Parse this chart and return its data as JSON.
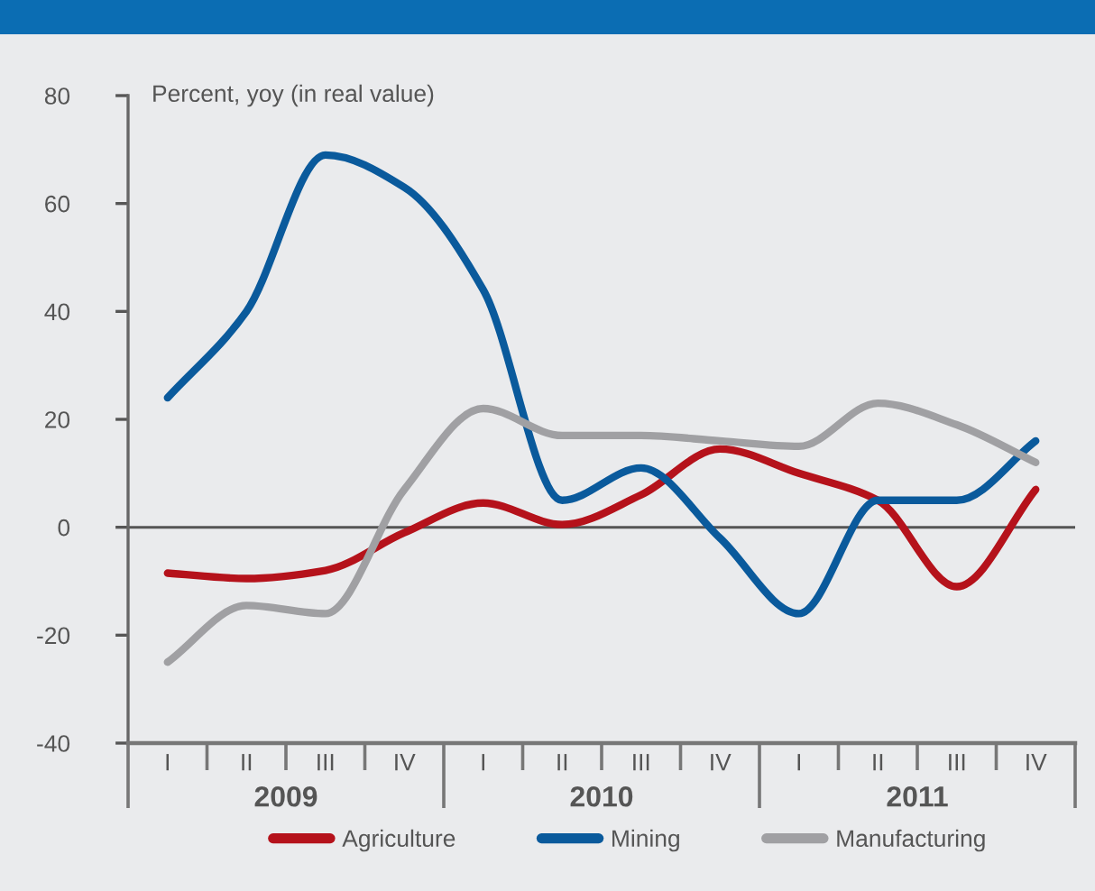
{
  "chart_data": {
    "type": "line",
    "ylabel": "Percent, yoy (in real value)",
    "categories": [
      "I",
      "II",
      "III",
      "IV",
      "I",
      "II",
      "III",
      "IV",
      "I",
      "II",
      "III",
      "IV"
    ],
    "annotations": [
      "2009",
      "2010",
      "2011"
    ],
    "series": [
      {
        "name": "Agriculture",
        "color": "#b5121b",
        "values": [
          -8.5,
          -9.5,
          -8,
          -1,
          4.5,
          0.5,
          6,
          14.5,
          10,
          5,
          -11,
          7
        ]
      },
      {
        "name": "Mining",
        "color": "#0a5a9c",
        "values": [
          24,
          40,
          69,
          63,
          44,
          5,
          11,
          -2,
          -16,
          5,
          5,
          16
        ]
      },
      {
        "name": "Manufacturing",
        "color": "#a0a0a3",
        "values": [
          -25,
          -14.5,
          -16,
          7,
          22,
          17,
          17,
          16,
          15,
          23,
          19,
          12
        ]
      }
    ],
    "ylim": [
      -40,
      80
    ],
    "yticks": [
      -40,
      -20,
      0,
      20,
      40,
      60,
      80
    ],
    "ref_lines": [
      {
        "axis": "y",
        "value": 0,
        "color": "#555555"
      }
    ],
    "legend": "bottom",
    "line_style": "solid"
  }
}
